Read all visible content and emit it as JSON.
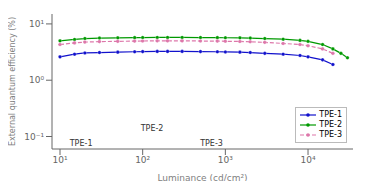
{
  "chart_data": {
    "type": "line",
    "xlabel": "Luminance (cd/cm²)",
    "ylabel": "External quantum efficiency (%)",
    "log": true,
    "xlim": [
      8,
      35000
    ],
    "ylim": [
      0.06,
      15
    ],
    "xticks": [
      {
        "value": 10,
        "label": "10¹"
      },
      {
        "value": 100,
        "label": "10²"
      },
      {
        "value": 1000,
        "label": "10³"
      },
      {
        "value": 10000,
        "label": "10⁴"
      }
    ],
    "yticks": [
      {
        "value": 0.1,
        "label": "10⁻¹"
      },
      {
        "value": 1,
        "label": "10⁰"
      },
      {
        "value": 10,
        "label": "10¹"
      }
    ],
    "grid": false,
    "legend": "lower right",
    "series": [
      {
        "name": "TPE-1",
        "color": "#1111cc",
        "line_style": "solid",
        "marker": "o",
        "x": [
          10,
          15,
          20,
          30,
          50,
          80,
          100,
          150,
          200,
          300,
          500,
          800,
          1000,
          1500,
          2000,
          3000,
          5000,
          8000,
          10000,
          15000,
          20000
        ],
        "values": [
          2.6,
          2.9,
          3.05,
          3.1,
          3.15,
          3.2,
          3.22,
          3.25,
          3.25,
          3.25,
          3.22,
          3.2,
          3.18,
          3.15,
          3.1,
          3.0,
          2.9,
          2.75,
          2.6,
          2.3,
          1.9
        ]
      },
      {
        "name": "TPE-2",
        "color": "#009900",
        "line_style": "solid",
        "marker": "o",
        "x": [
          10,
          15,
          20,
          30,
          50,
          80,
          100,
          150,
          200,
          300,
          500,
          800,
          1000,
          1500,
          2000,
          3000,
          5000,
          8000,
          10000,
          15000,
          20000,
          25000,
          30000
        ],
        "values": [
          5.0,
          5.3,
          5.5,
          5.6,
          5.65,
          5.7,
          5.72,
          5.75,
          5.75,
          5.75,
          5.72,
          5.7,
          5.68,
          5.65,
          5.6,
          5.5,
          5.35,
          5.1,
          4.9,
          4.3,
          3.6,
          3.0,
          2.5
        ]
      },
      {
        "name": "TPE-3",
        "color": "#dd77aa",
        "line_style": "dashed",
        "marker": "o",
        "x": [
          10,
          15,
          20,
          30,
          50,
          80,
          100,
          150,
          200,
          300,
          500,
          800,
          1000,
          1500,
          2000,
          3000,
          5000,
          8000,
          10000,
          15000,
          20000
        ],
        "values": [
          4.3,
          4.6,
          4.75,
          4.85,
          4.9,
          4.95,
          4.97,
          5.0,
          5.0,
          5.0,
          4.97,
          4.95,
          4.92,
          4.88,
          4.82,
          4.7,
          4.5,
          4.3,
          4.1,
          3.6,
          3.0
        ]
      }
    ],
    "annotations": [
      {
        "text": "TPE-1",
        "x": 18,
        "y": 0.075
      },
      {
        "text": "TPE-2",
        "x": 130,
        "y": 0.14
      },
      {
        "text": "TPE-3",
        "x": 680,
        "y": 0.075
      }
    ]
  }
}
